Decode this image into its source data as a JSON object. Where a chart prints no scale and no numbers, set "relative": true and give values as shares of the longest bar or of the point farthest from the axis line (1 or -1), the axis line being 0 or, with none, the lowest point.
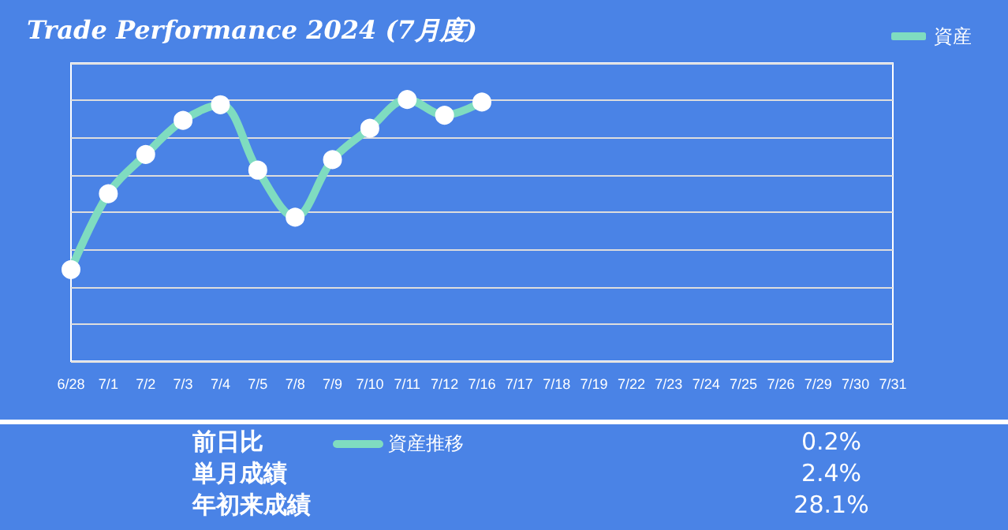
{
  "chart_data": {
    "type": "line",
    "title": "Trade Performance 2024 (7月度)",
    "categories": [
      "6/28",
      "7/1",
      "7/2",
      "7/3",
      "7/4",
      "7/5",
      "7/8",
      "7/9",
      "7/10",
      "7/11",
      "7/12",
      "7/16",
      "7/17",
      "7/18",
      "7/19",
      "7/22",
      "7/23",
      "7/24",
      "7/25",
      "7/26",
      "7/29",
      "7/30",
      "7/31"
    ],
    "series": [
      {
        "name": "資産",
        "color": "#7fdcc0",
        "values": [
          0.35,
          0.64,
          0.79,
          0.92,
          0.98,
          0.73,
          0.55,
          0.77,
          0.89,
          1,
          0.94,
          0.99,
          null,
          null,
          null,
          null,
          null,
          null,
          null,
          null,
          null,
          null,
          null
        ]
      }
    ],
    "relative": true,
    "grid": "y",
    "legend": "top right",
    "marker": "circle",
    "line_style": "solid",
    "annotations": [
      "前日比",
      "0.2%",
      "単月成績",
      "2.4%",
      "年初来成績",
      "28.1%",
      "資産推移"
    ]
  }
}
